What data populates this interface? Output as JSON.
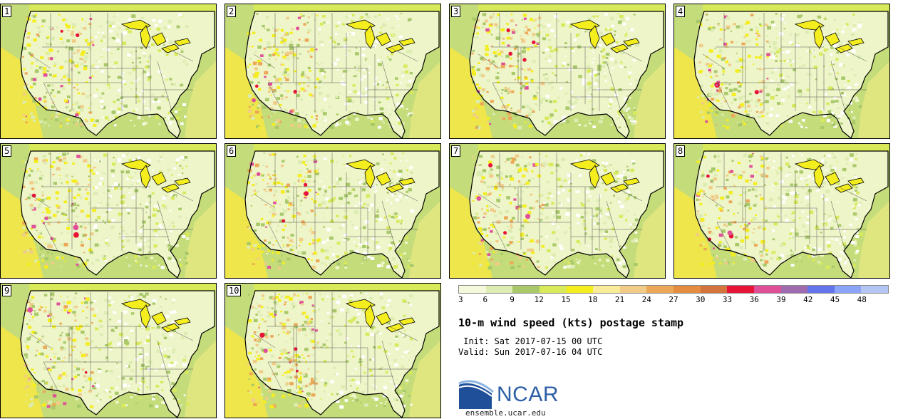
{
  "panels": [
    {
      "label": "1",
      "seed": 11
    },
    {
      "label": "2",
      "seed": 23
    },
    {
      "label": "3",
      "seed": 37
    },
    {
      "label": "4",
      "seed": 41
    },
    {
      "label": "5",
      "seed": 53
    },
    {
      "label": "6",
      "seed": 67
    },
    {
      "label": "7",
      "seed": 71
    },
    {
      "label": "8",
      "seed": 83
    },
    {
      "label": "9",
      "seed": 97
    },
    {
      "label": "10",
      "seed": 101
    }
  ],
  "colorbar": {
    "colors": [
      "#f4f9dc",
      "#dcecb2",
      "#a8c86a",
      "#d8ea5a",
      "#f4ee1e",
      "#f8ec98",
      "#f0cc88",
      "#eca858",
      "#e48c40",
      "#d2743c",
      "#e81438",
      "#e05098",
      "#a06cb0",
      "#6474ea",
      "#8ca4f8",
      "#b4c6f4"
    ],
    "ticks": [
      "3",
      "6",
      "9",
      "12",
      "15",
      "18",
      "21",
      "24",
      "27",
      "30",
      "33",
      "36",
      "39",
      "42",
      "45",
      "48"
    ]
  },
  "title": "10-m wind speed (kts) postage stamp",
  "init": " Init: Sat 2017-07-15 00 UTC",
  "valid": "Valid: Sun 2017-07-16 04 UTC",
  "logo_text": "NCAR",
  "site": "ensemble.ucar.edu"
}
